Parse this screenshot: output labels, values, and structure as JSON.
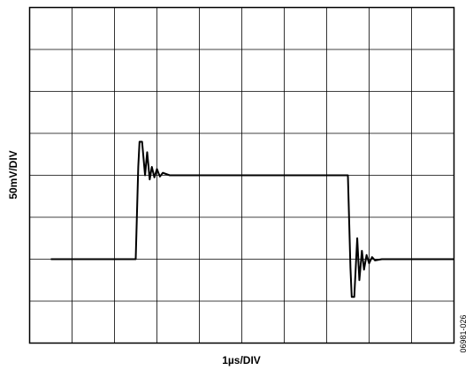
{
  "chart_data": {
    "type": "line",
    "title": "",
    "xlabel": "1µs/DIV",
    "ylabel": "50mV/DIV",
    "x_divisions": 10,
    "y_divisions": 8,
    "xlim": [
      0,
      10
    ],
    "ylim": [
      -4,
      4
    ],
    "grid": true,
    "figure_id": "06981-026",
    "series": [
      {
        "values": [
          {
            "x": 0.5,
            "y": -2.0
          },
          {
            "x": 2.5,
            "y": -2.0
          },
          {
            "x": 2.56,
            "y": 0.2
          },
          {
            "x": 2.59,
            "y": 0.8
          },
          {
            "x": 2.65,
            "y": 0.8
          },
          {
            "x": 2.72,
            "y": 0.0
          },
          {
            "x": 2.77,
            "y": 0.55
          },
          {
            "x": 2.83,
            "y": -0.1
          },
          {
            "x": 2.88,
            "y": 0.2
          },
          {
            "x": 2.94,
            "y": -0.05
          },
          {
            "x": 3.0,
            "y": 0.15
          },
          {
            "x": 3.07,
            "y": -0.03
          },
          {
            "x": 3.14,
            "y": 0.06
          },
          {
            "x": 3.3,
            "y": 0.0
          },
          {
            "x": 7.5,
            "y": 0.0
          },
          {
            "x": 7.56,
            "y": -2.2
          },
          {
            "x": 7.59,
            "y": -2.9
          },
          {
            "x": 7.65,
            "y": -2.9
          },
          {
            "x": 7.72,
            "y": -1.5
          },
          {
            "x": 7.77,
            "y": -2.5
          },
          {
            "x": 7.83,
            "y": -1.8
          },
          {
            "x": 7.88,
            "y": -2.25
          },
          {
            "x": 7.94,
            "y": -1.9
          },
          {
            "x": 8.0,
            "y": -2.1
          },
          {
            "x": 8.07,
            "y": -1.95
          },
          {
            "x": 8.14,
            "y": -2.03
          },
          {
            "x": 8.3,
            "y": -2.0
          },
          {
            "x": 10.0,
            "y": -2.0
          }
        ]
      }
    ]
  },
  "colors": {
    "trace": "#000000",
    "grid": "#000000",
    "background": "#ffffff"
  }
}
